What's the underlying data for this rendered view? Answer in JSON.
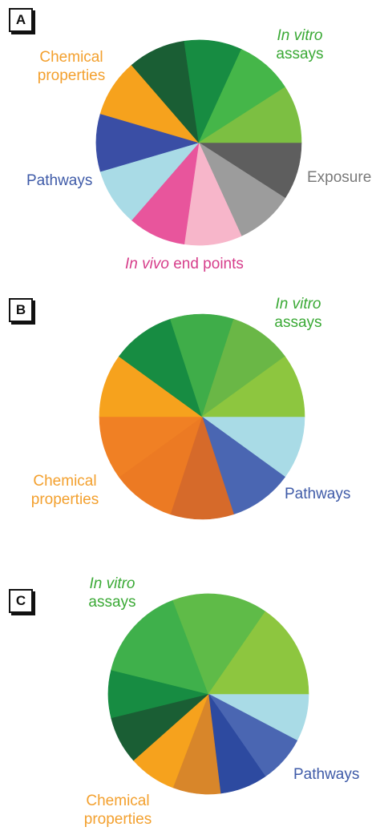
{
  "chart_data": [
    {
      "type": "pie",
      "panel_label": "A",
      "start_angle_deg": 0,
      "direction": "clockwise-from-right",
      "slices": [
        {
          "group": "Exposure",
          "value": 1,
          "color": "#5e5e5e"
        },
        {
          "group": "Exposure",
          "value": 1,
          "color": "#9c9c9c"
        },
        {
          "group": "In vivo end points",
          "value": 1,
          "color": "#f7b6ca"
        },
        {
          "group": "In vivo end points",
          "value": 1,
          "color": "#e8559c"
        },
        {
          "group": "Pathways",
          "value": 1,
          "color": "#a9dbe6"
        },
        {
          "group": "Pathways",
          "value": 1,
          "color": "#3a4ea5"
        },
        {
          "group": "Chemical properties",
          "value": 1,
          "color": "#f6a21d"
        },
        {
          "group": "Chemical properties",
          "value": 1,
          "color": "#1a5e34"
        },
        {
          "group": "In vitro assays",
          "value": 1,
          "color": "#178c42"
        },
        {
          "group": "In vitro assays",
          "value": 1,
          "color": "#45b649"
        },
        {
          "group": "In vitro assays",
          "value": 1,
          "color": "#7cbf42"
        }
      ],
      "labels": {
        "invitro_italic": "In vitro",
        "invitro_rest": "assays",
        "chemical_1": "Chemical",
        "chemical_2": "properties",
        "pathways": "Pathways",
        "exposure": "Exposure",
        "invivo_italic": "In vivo",
        "invivo_rest": " end points"
      },
      "label_colors": {
        "invitro": "#3aa935",
        "chemical": "#f3a02e",
        "pathways": "#3f5ba8",
        "exposure": "#7a7a7a",
        "invivo": "#d63d8a"
      }
    },
    {
      "type": "pie",
      "panel_label": "B",
      "start_angle_deg": 0,
      "direction": "clockwise-from-right",
      "slices": [
        {
          "group": "Pathways",
          "value": 1,
          "color": "#a9dbe6"
        },
        {
          "group": "Pathways",
          "value": 1,
          "color": "#4a66b2"
        },
        {
          "group": "Chemical properties",
          "value": 1,
          "color": "#d66a2a"
        },
        {
          "group": "Chemical properties",
          "value": 1,
          "color": "#ec7a23"
        },
        {
          "group": "Chemical properties",
          "value": 1,
          "color": "#f08024"
        },
        {
          "group": "Chemical properties",
          "value": 1,
          "color": "#f6a21d"
        },
        {
          "group": "In vitro assays",
          "value": 1,
          "color": "#178c42"
        },
        {
          "group": "In vitro assays",
          "value": 1,
          "color": "#3fad49"
        },
        {
          "group": "In vitro assays",
          "value": 1,
          "color": "#6ab746"
        },
        {
          "group": "In vitro assays",
          "value": 1,
          "color": "#8dc63f"
        }
      ],
      "labels": {
        "invitro_italic": "In vitro",
        "invitro_rest": "assays",
        "chemical_1": "Chemical",
        "chemical_2": "properties",
        "pathways": "Pathways"
      },
      "label_colors": {
        "invitro": "#3aa935",
        "chemical": "#f3a02e",
        "pathways": "#3f5ba8"
      }
    },
    {
      "type": "pie",
      "panel_label": "C",
      "start_angle_deg": 0,
      "direction": "clockwise-from-right",
      "slices": [
        {
          "group": "Pathways",
          "value": 1,
          "color": "#a9dbe6"
        },
        {
          "group": "Pathways",
          "value": 1,
          "color": "#4a66b2"
        },
        {
          "group": "Pathways",
          "value": 1,
          "color": "#2d4aa0"
        },
        {
          "group": "Chemical properties",
          "value": 1,
          "color": "#d8862a"
        },
        {
          "group": "Chemical properties",
          "value": 1,
          "color": "#f6a21d"
        },
        {
          "group": "In vitro assays",
          "value": 1,
          "color": "#1a5e34"
        },
        {
          "group": "In vitro assays",
          "value": 1,
          "color": "#178c42"
        },
        {
          "group": "In vitro assays",
          "value": 2,
          "color": "#3fb04b"
        },
        {
          "group": "In vitro assays",
          "value": 2,
          "color": "#5fbb48"
        },
        {
          "group": "In vitro assays",
          "value": 2,
          "color": "#8dc63f"
        }
      ],
      "labels": {
        "invitro_italic": "In vitro",
        "invitro_rest": "assays",
        "chemical_1": "Chemical",
        "chemical_2": "properties",
        "pathways": "Pathways"
      },
      "label_colors": {
        "invitro": "#3aa935",
        "chemical": "#f3a02e",
        "pathways": "#3f5ba8"
      }
    }
  ]
}
